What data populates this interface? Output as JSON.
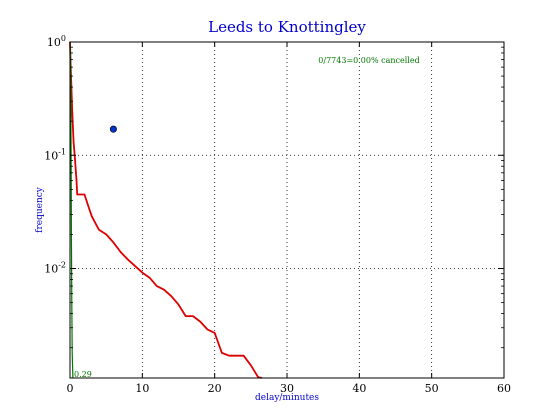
{
  "chart_data": {
    "type": "line",
    "title": "Leeds to Knottingley",
    "xlabel": "delay/minutes",
    "ylabel": "frequency",
    "xlim": [
      0,
      60
    ],
    "ylim": [
      0.00108,
      1.0
    ],
    "yscale": "log",
    "grid": true,
    "x_ticks": [
      "0",
      "10",
      "20",
      "30",
      "40",
      "50",
      "60"
    ],
    "y_ticks": [
      {
        "base": "10",
        "exp": "0"
      },
      {
        "base": "10",
        "exp": "-1"
      },
      {
        "base": "10",
        "exp": "-2"
      }
    ],
    "annotation": "0/7743=0.00% cancelled",
    "green_label": "0.29",
    "series": [
      {
        "color": "#dd0000",
        "x": [
          0,
          0.1,
          0.3,
          0.5,
          0.7,
          0.9,
          1.0,
          1.3,
          2,
          2.5,
          3,
          4,
          5,
          6,
          7,
          8,
          9,
          10,
          11,
          12,
          13,
          14,
          15,
          16,
          17,
          18,
          19,
          20,
          20.5,
          21,
          22,
          23,
          24,
          25,
          26,
          26.5
        ],
        "y": [
          1.0,
          0.6,
          0.25,
          0.13,
          0.09,
          0.06,
          0.045,
          0.045,
          0.045,
          0.036,
          0.029,
          0.022,
          0.02,
          0.017,
          0.014,
          0.012,
          0.0105,
          0.0092,
          0.0083,
          0.007,
          0.0065,
          0.0057,
          0.0048,
          0.0038,
          0.0038,
          0.0034,
          0.0029,
          0.0027,
          0.0022,
          0.0018,
          0.0017,
          0.0017,
          0.0017,
          0.0014,
          0.0011,
          0.001
        ]
      },
      {
        "color": "#007700",
        "x": [
          0,
          0.05,
          0.1,
          0.15,
          0.2,
          0.25,
          0.3,
          0.4
        ],
        "y": [
          1.0,
          0.8,
          0.45,
          0.1,
          0.02,
          0.005,
          0.0018,
          0.001
        ]
      }
    ],
    "marker": {
      "x": 6,
      "y": 0.17,
      "color": "#0033cc"
    }
  }
}
